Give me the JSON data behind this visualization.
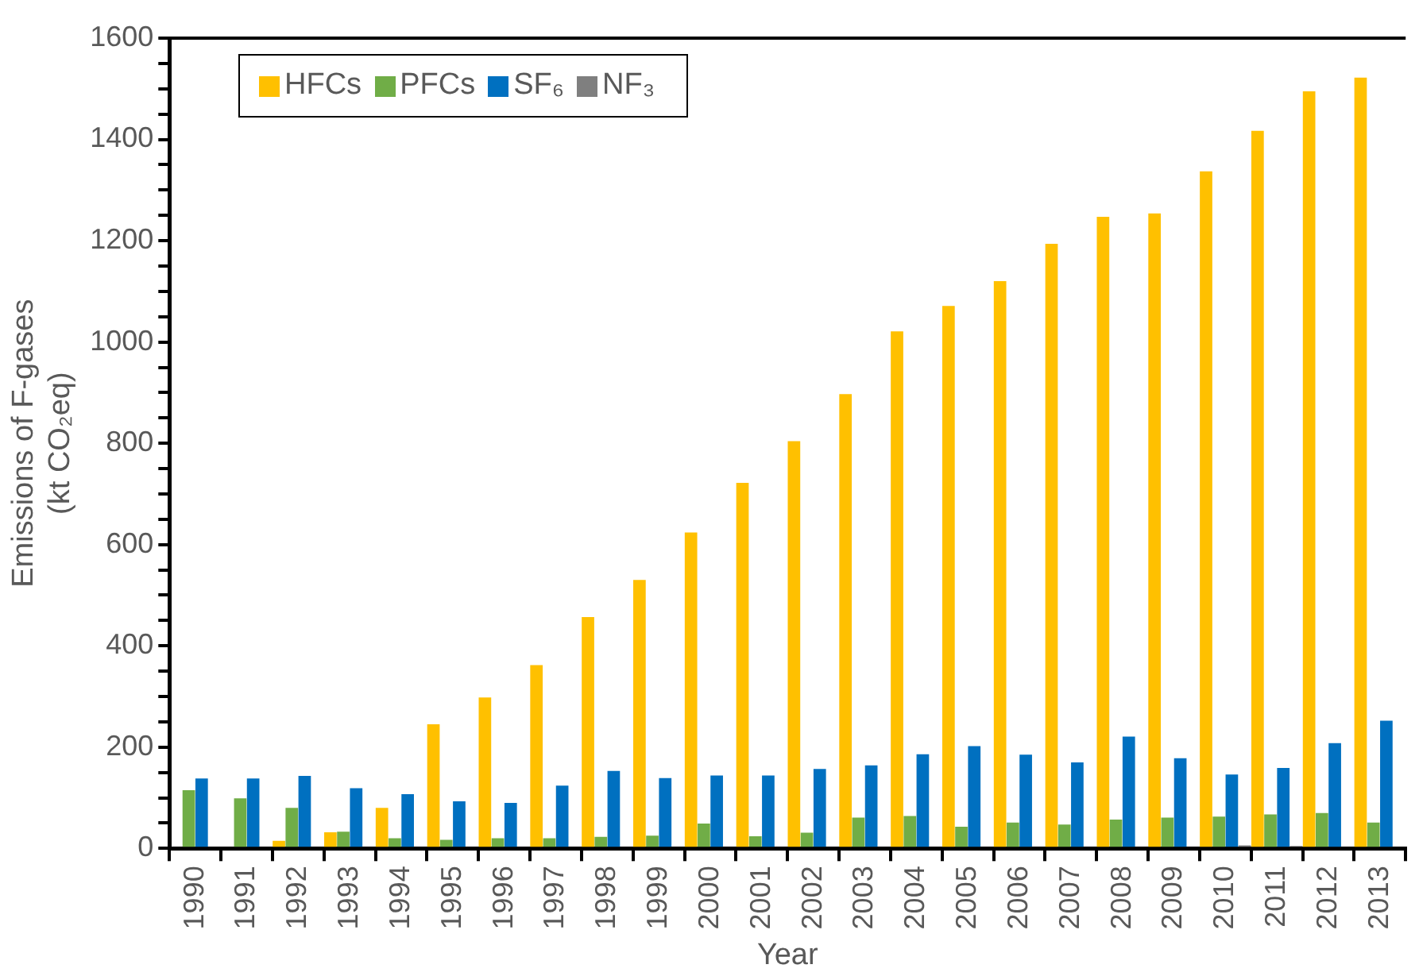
{
  "chart_data": {
    "type": "bar",
    "xlabel": "Year",
    "ylabel": "Emissions of F-gases\n(kt CO₂eq)",
    "categories": [
      "1990",
      "1991",
      "1992",
      "1993",
      "1994",
      "1995",
      "1996",
      "1997",
      "1998",
      "1999",
      "2000",
      "2001",
      "2002",
      "2003",
      "2004",
      "2005",
      "2006",
      "2007",
      "2008",
      "2009",
      "2010",
      "2011",
      "2012",
      "2013"
    ],
    "series": [
      {
        "name": "HFCs",
        "color": "#ffc000",
        "values": [
          0,
          0,
          15,
          32,
          80,
          245,
          298,
          362,
          457,
          530,
          624,
          722,
          804,
          897,
          1021,
          1071,
          1120,
          1194,
          1247,
          1254,
          1337,
          1417,
          1495,
          1522
        ]
      },
      {
        "name": "PFCs",
        "color": "#70ad47",
        "values": [
          115,
          99,
          80,
          33,
          20,
          17,
          20,
          20,
          23,
          25,
          49,
          24,
          31,
          61,
          64,
          43,
          51,
          47,
          57,
          61,
          63,
          67,
          70,
          51
        ]
      },
      {
        "name": "SF₆",
        "color": "#0070c0",
        "values": [
          138,
          138,
          143,
          119,
          107,
          93,
          90,
          124,
          153,
          139,
          144,
          144,
          157,
          164,
          186,
          202,
          185,
          170,
          221,
          178,
          146,
          159,
          208,
          252
        ]
      },
      {
        "name": "NF₃",
        "color": "#7f7f7f",
        "values": [
          0,
          0,
          0,
          0,
          0,
          0,
          0,
          0,
          0,
          0,
          0,
          0,
          0,
          0,
          0,
          0,
          0,
          0,
          0,
          0,
          6,
          5,
          0,
          0
        ]
      }
    ],
    "ylim": [
      0,
      1600
    ],
    "yticks": [
      0,
      {
        "value": 50,
        "label": null
      },
      200,
      {
        "value": 100,
        "label": null
      },
      {
        "value": 150,
        "label": null
      },
      {
        "value": 250,
        "label": null
      },
      {
        "value": 300,
        "label": null
      },
      {
        "value": 350,
        "label": null
      },
      400,
      {
        "value": 450,
        "label": null
      },
      {
        "value": 500,
        "label": null
      },
      {
        "value": 550,
        "label": null
      },
      600,
      {
        "value": 650,
        "label": null
      },
      {
        "value": 700,
        "label": null
      },
      {
        "value": 750,
        "label": null
      },
      800,
      {
        "value": 850,
        "label": null
      },
      {
        "value": 900,
        "label": null
      },
      {
        "value": 950,
        "label": null
      },
      1000,
      {
        "value": 1050,
        "label": null
      },
      {
        "value": 1100,
        "label": null
      },
      {
        "value": 1150,
        "label": null
      },
      1200,
      {
        "value": 1250,
        "label": null
      },
      {
        "value": 1300,
        "label": null
      },
      {
        "value": 1350,
        "label": null
      },
      1400,
      {
        "value": 1450,
        "label": null
      },
      {
        "value": 1500,
        "label": null
      },
      {
        "value": 1550,
        "label": null
      },
      1600
    ],
    "grid": false,
    "legend": "top left"
  }
}
